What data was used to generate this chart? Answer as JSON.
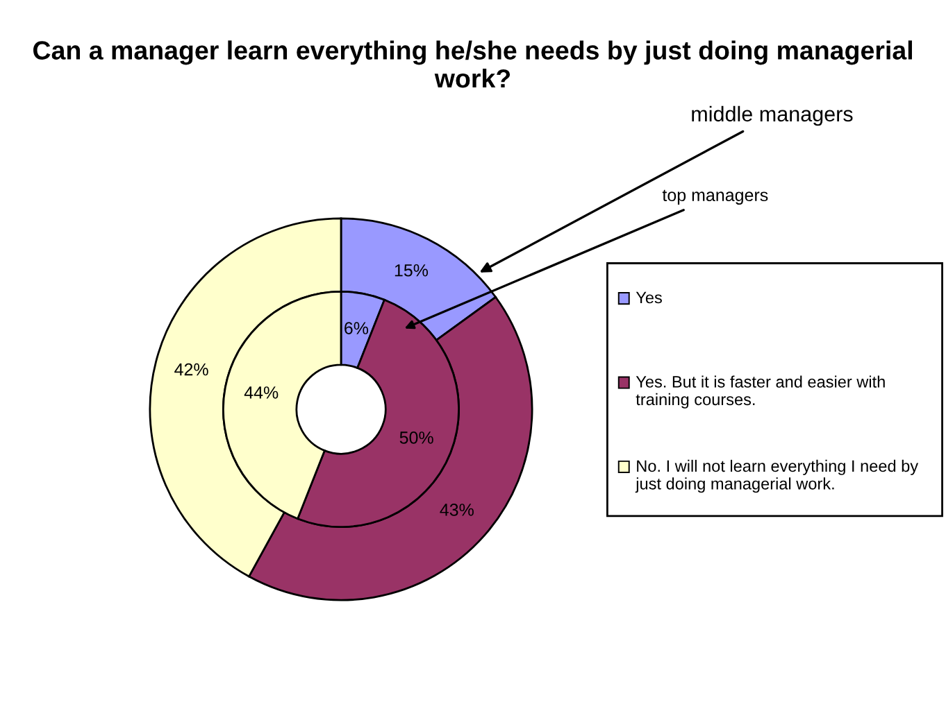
{
  "chart_data": {
    "type": "donut",
    "title": "Can a manager learn everything he/she needs by just doing managerial work?",
    "categories": [
      "Yes",
      "Yes. But it is faster and easier with training courses.",
      "No. I will not learn everything I need by just doing managerial work."
    ],
    "colors": [
      "#9999ff",
      "#993366",
      "#ffffcc"
    ],
    "series": [
      {
        "name": "middle managers",
        "values": [
          15,
          43,
          42
        ],
        "value_labels": [
          "15%",
          "43%",
          "42%"
        ]
      },
      {
        "name": "top managers",
        "values": [
          6,
          50,
          44
        ],
        "value_labels": [
          "6%",
          "50%",
          "44%"
        ]
      }
    ],
    "legend": "right"
  }
}
